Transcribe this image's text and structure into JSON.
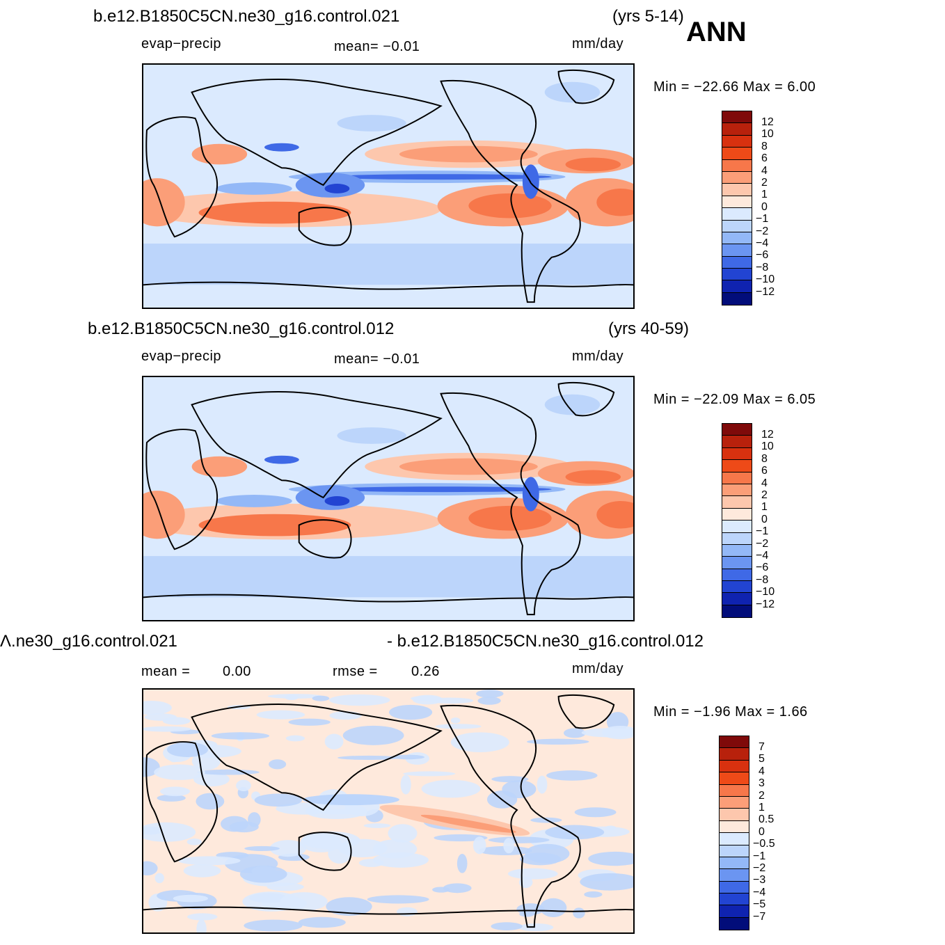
{
  "season": "ANN",
  "panels": [
    {
      "case": "b.e12.B1850C5CN.ne30_g16.control.021",
      "years": "(yrs 5-14)",
      "left_label": "evap−precip",
      "center_label": "mean=   −0.01",
      "center_label2": "",
      "units": "mm/day",
      "minmax": "Min  =  −22.66  Max  =     6.00",
      "colorbar": {
        "labels": [
          "12",
          "10",
          "8",
          "6",
          "4",
          "2",
          "1",
          "0",
          "−1",
          "−2",
          "−4",
          "−6",
          "−8",
          "−10",
          "−12"
        ],
        "colors": [
          "#7f0a0a",
          "#b8210c",
          "#d8310f",
          "#ee4a18",
          "#f7774a",
          "#fb9e78",
          "#fdc7ad",
          "#fee9dc",
          "#dbeafe",
          "#bcd5fb",
          "#93b8f7",
          "#6b95f1",
          "#3f69e6",
          "#2244d2",
          "#0f23b0",
          "#020d7a"
        ]
      },
      "map_type": "evap_minus_precip"
    },
    {
      "case": "b.e12.B1850C5CN.ne30_g16.control.012",
      "years": "(yrs 40-59)",
      "left_label": "evap−precip",
      "center_label": "mean=   −0.01",
      "center_label2": "",
      "units": "mm/day",
      "minmax": "Min  =  −22.09  Max  =     6.05",
      "colorbar": {
        "labels": [
          "12",
          "10",
          "8",
          "6",
          "4",
          "2",
          "1",
          "0",
          "−1",
          "−2",
          "−4",
          "−6",
          "−8",
          "−10",
          "−12"
        ],
        "colors": [
          "#7f0a0a",
          "#b8210c",
          "#d8310f",
          "#ee4a18",
          "#f7774a",
          "#fb9e78",
          "#fdc7ad",
          "#fee9dc",
          "#dbeafe",
          "#bcd5fb",
          "#93b8f7",
          "#6b95f1",
          "#3f69e6",
          "#2244d2",
          "#0f23b0",
          "#020d7a"
        ]
      },
      "map_type": "evap_minus_precip"
    },
    {
      "case": "Ʌ.ne30_g16.control.021",
      "case_right": "- b.e12.B1850C5CN.ne30_g16.control.012",
      "left_label": "mean  =",
      "left_value": "0.00",
      "center_label": "rmse  =",
      "center_value": "0.26",
      "units": "mm/day",
      "minmax": "Min  =   −1.96  Max  =     1.66",
      "colorbar": {
        "labels": [
          "7",
          "5",
          "4",
          "3",
          "2",
          "1",
          "0.5",
          "0",
          "−0.5",
          "−1",
          "−2",
          "−3",
          "−4",
          "−5",
          "−7"
        ],
        "colors": [
          "#7f0a0a",
          "#b8210c",
          "#d8310f",
          "#ee4a18",
          "#f7774a",
          "#fb9e78",
          "#fdc7ad",
          "#fee9dc",
          "#dbeafe",
          "#bcd5fb",
          "#93b8f7",
          "#6b95f1",
          "#3f69e6",
          "#2244d2",
          "#0f23b0",
          "#020d7a"
        ]
      },
      "map_type": "difference"
    }
  ]
}
